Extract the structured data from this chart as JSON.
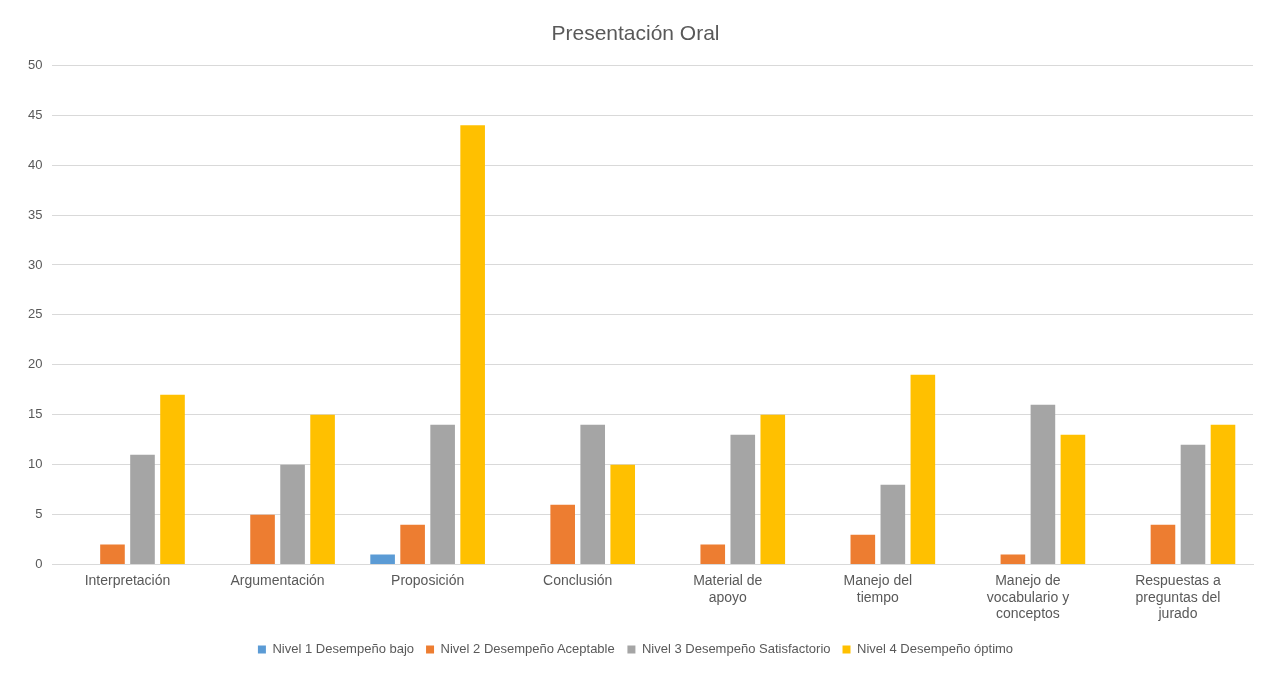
{
  "chart_data": {
    "type": "bar",
    "title": "Presentación Oral",
    "categories": [
      "Interpretación",
      "Argumentación",
      "Proposición",
      "Conclusión",
      "Material de apoyo",
      "Manejo del tiempo",
      "Manejo de vocabulario y conceptos",
      "Respuestas a preguntas del jurado"
    ],
    "series": [
      {
        "name": "Nivel 1 Desempeño bajo",
        "color": "#5b9bd5",
        "values": [
          0,
          0,
          1,
          0,
          0,
          0,
          0,
          0
        ]
      },
      {
        "name": "Nivel 2 Desempeño Aceptable",
        "color": "#ed7d31",
        "values": [
          2,
          5,
          4,
          6,
          2,
          3,
          1,
          4
        ]
      },
      {
        "name": "Nivel 3 Desempeño Satisfactorio",
        "color": "#a5a5a5",
        "values": [
          11,
          10,
          14,
          14,
          13,
          8,
          16,
          12
        ]
      },
      {
        "name": "Nivel 4 Desempeño óptimo",
        "color": "#ffc000",
        "values": [
          17,
          15,
          44,
          10,
          15,
          19,
          13,
          14
        ]
      }
    ],
    "ylim": [
      0,
      50
    ],
    "yticks": [
      0,
      5,
      10,
      15,
      20,
      25,
      30,
      35,
      40,
      45,
      50
    ],
    "grid": "y",
    "legend": "bottom"
  }
}
